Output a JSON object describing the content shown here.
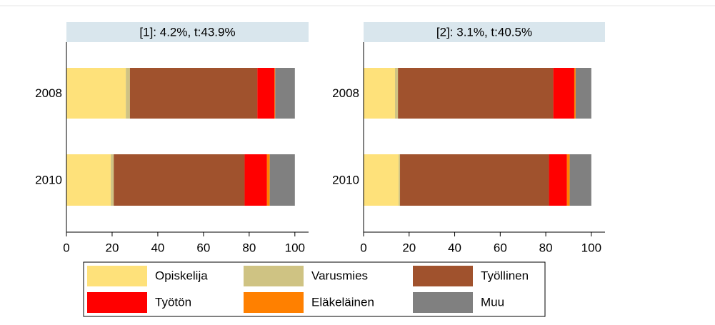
{
  "chart_data": [
    {
      "type": "stacked_barh",
      "title": "[1]: 4.2%, t:43.9%",
      "categories": [
        "2008",
        "2010"
      ],
      "series": [
        {
          "name": "Opiskelija",
          "color": "#fee17a",
          "values": [
            26,
            19.4
          ]
        },
        {
          "name": "Varusmies",
          "color": "#cfc383",
          "values": [
            1.8,
            1.3
          ]
        },
        {
          "name": "Työllinen",
          "color": "#a0522d",
          "values": [
            55.8,
            57.3
          ]
        },
        {
          "name": "Työtön",
          "color": "#ff0000",
          "values": [
            7.5,
            9.8
          ]
        },
        {
          "name": "Eläkeläinen",
          "color": "#ff8000",
          "values": [
            0.3,
            1.2
          ]
        },
        {
          "name": "Muu",
          "color": "#808080",
          "values": [
            8.6,
            11
          ]
        }
      ],
      "xlim": [
        0,
        106
      ],
      "xticks": [
        0,
        20,
        40,
        60,
        80,
        100
      ]
    },
    {
      "type": "stacked_barh",
      "title": "[2]: 3.1%, t:40.5%",
      "categories": [
        "2008",
        "2010"
      ],
      "series": [
        {
          "name": "Opiskelija",
          "color": "#fee17a",
          "values": [
            13.8,
            15.4
          ]
        },
        {
          "name": "Varusmies",
          "color": "#cfc383",
          "values": [
            1.3,
            0.6
          ]
        },
        {
          "name": "Työllinen",
          "color": "#a0522d",
          "values": [
            68.2,
            65.4
          ]
        },
        {
          "name": "Työtön",
          "color": "#ff0000",
          "values": [
            9.2,
            7.9
          ]
        },
        {
          "name": "Eläkeläinen",
          "color": "#ff8000",
          "values": [
            0.6,
            1.2
          ]
        },
        {
          "name": "Muu",
          "color": "#808080",
          "values": [
            6.9,
            9.5
          ]
        }
      ],
      "xlim": [
        0,
        106
      ],
      "xticks": [
        0,
        20,
        40,
        60,
        80,
        100
      ]
    }
  ]
}
